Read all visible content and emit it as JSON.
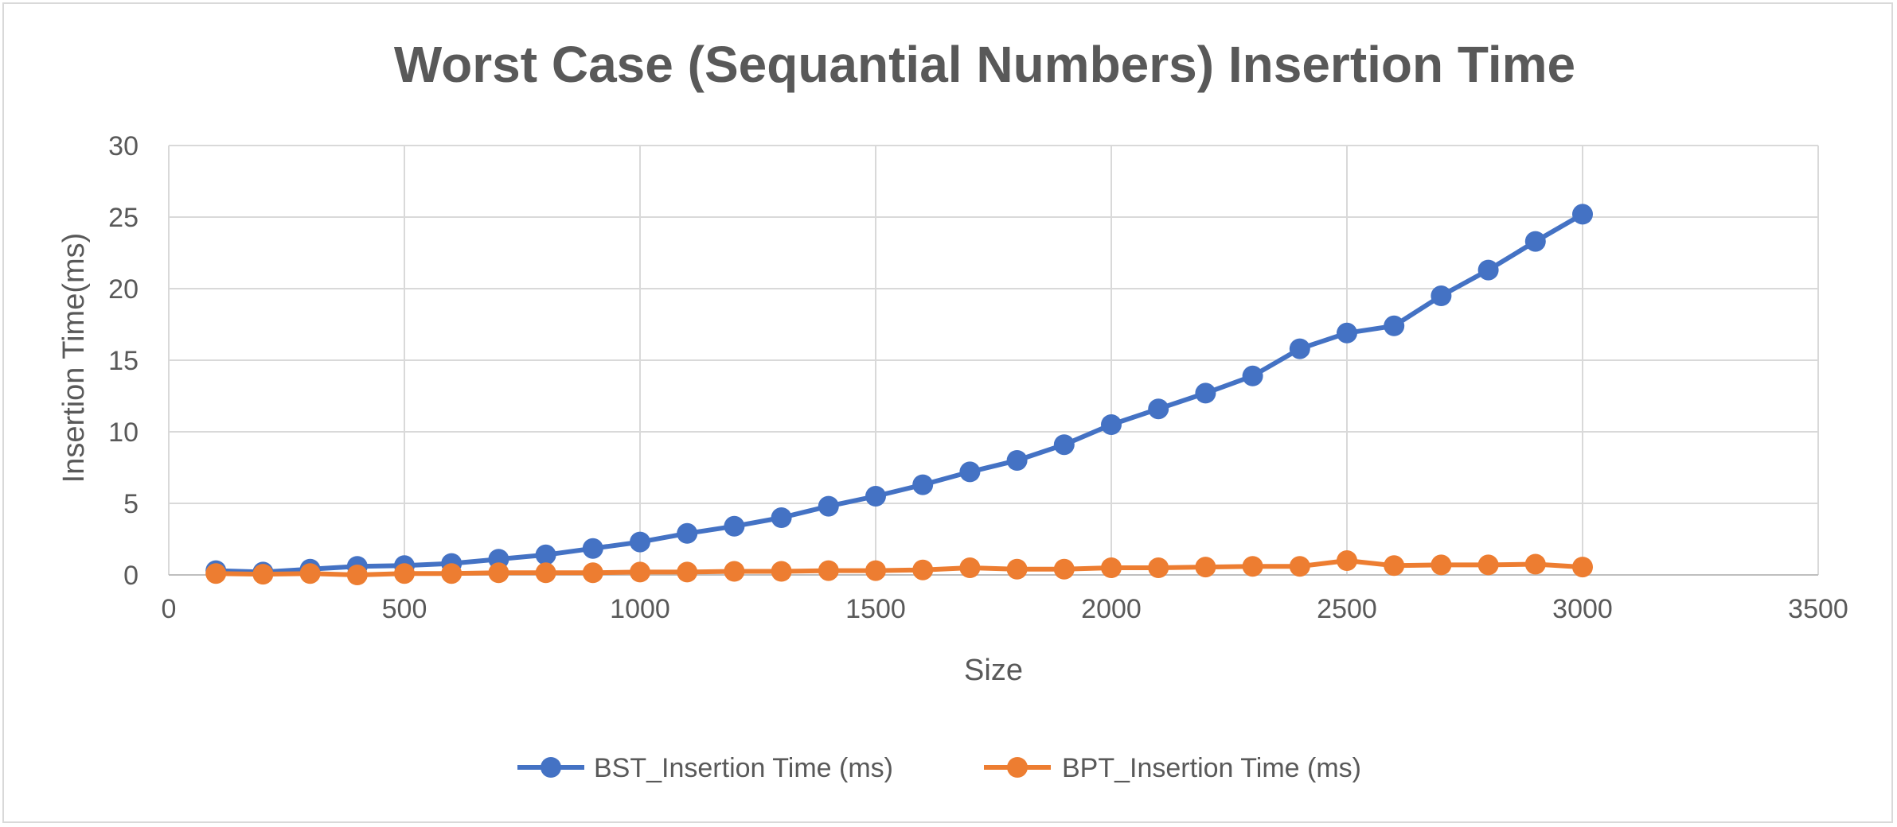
{
  "chart_data": {
    "type": "line",
    "title": "Worst Case (Sequantial Numbers) Insertion Time",
    "xlabel": "Size",
    "ylabel": "Insertion Time(ms)",
    "xlim": [
      0,
      3500
    ],
    "ylim": [
      0,
      30
    ],
    "x_ticks": [
      0,
      500,
      1000,
      1500,
      2000,
      2500,
      3000,
      3500
    ],
    "y_ticks": [
      0,
      5,
      10,
      15,
      20,
      25,
      30
    ],
    "x_tick_labels": [
      "0",
      "500",
      "1000",
      "1500",
      "2000",
      "2500",
      "3000",
      "3500"
    ],
    "y_tick_labels": [
      "0",
      "5",
      "10",
      "15",
      "20",
      "25",
      "30"
    ],
    "grid": true,
    "legend_position": "bottom",
    "x": [
      100,
      200,
      300,
      400,
      500,
      600,
      700,
      800,
      900,
      1000,
      1100,
      1200,
      1300,
      1400,
      1500,
      1600,
      1700,
      1800,
      1900,
      2000,
      2100,
      2200,
      2300,
      2400,
      2500,
      2600,
      2700,
      2800,
      2900,
      3000
    ],
    "series": [
      {
        "name": "BST_Insertion Time (ms)",
        "color": "#4472c4",
        "values": [
          0.3,
          0.2,
          0.4,
          0.6,
          0.65,
          0.8,
          1.1,
          1.4,
          1.85,
          2.3,
          2.9,
          3.4,
          4.0,
          4.8,
          5.5,
          6.3,
          7.2,
          8.0,
          9.1,
          10.5,
          11.6,
          12.7,
          13.9,
          15.8,
          16.9,
          17.4,
          19.5,
          21.3,
          23.3,
          25.2
        ]
      },
      {
        "name": "BPT_Insertion Time (ms)",
        "color": "#ed7d31",
        "values": [
          0.1,
          0.05,
          0.1,
          0.0,
          0.1,
          0.1,
          0.15,
          0.15,
          0.15,
          0.2,
          0.2,
          0.25,
          0.25,
          0.3,
          0.3,
          0.35,
          0.5,
          0.4,
          0.4,
          0.5,
          0.5,
          0.55,
          0.6,
          0.6,
          1.0,
          0.65,
          0.7,
          0.7,
          0.75,
          0.55
        ]
      }
    ]
  }
}
